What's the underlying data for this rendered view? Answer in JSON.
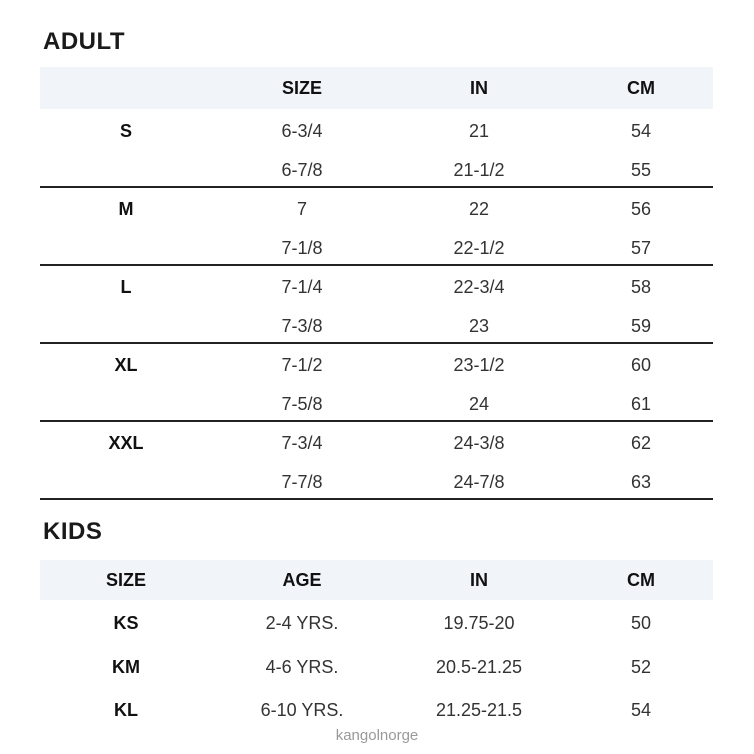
{
  "adult": {
    "title": "ADULT",
    "headers": [
      "",
      "SIZE",
      "IN",
      "CM"
    ],
    "groups": [
      {
        "label": "S",
        "rows": [
          [
            "6-3/4",
            "21",
            "54"
          ],
          [
            "6-7/8",
            "21-1/2",
            "55"
          ]
        ]
      },
      {
        "label": "M",
        "rows": [
          [
            "7",
            "22",
            "56"
          ],
          [
            "7-1/8",
            "22-1/2",
            "57"
          ]
        ]
      },
      {
        "label": "L",
        "rows": [
          [
            "7-1/4",
            "22-3/4",
            "58"
          ],
          [
            "7-3/8",
            "23",
            "59"
          ]
        ]
      },
      {
        "label": "XL",
        "rows": [
          [
            "7-1/2",
            "23-1/2",
            "60"
          ],
          [
            "7-5/8",
            "24",
            "61"
          ]
        ]
      },
      {
        "label": "XXL",
        "rows": [
          [
            "7-3/4",
            "24-3/8",
            "62"
          ],
          [
            "7-7/8",
            "24-7/8",
            "63"
          ]
        ]
      }
    ]
  },
  "kids": {
    "title": "KIDS",
    "headers": [
      "SIZE",
      "AGE",
      "IN",
      "CM"
    ],
    "rows": [
      [
        "KS",
        "2-4 YRS.",
        "19.75-20",
        "50"
      ],
      [
        "KM",
        "4-6 YRS.",
        "20.5-21.25",
        "52"
      ],
      [
        "KL",
        "6-10 YRS.",
        "21.25-21.5",
        "54"
      ]
    ]
  },
  "watermark": "kangolnorge"
}
